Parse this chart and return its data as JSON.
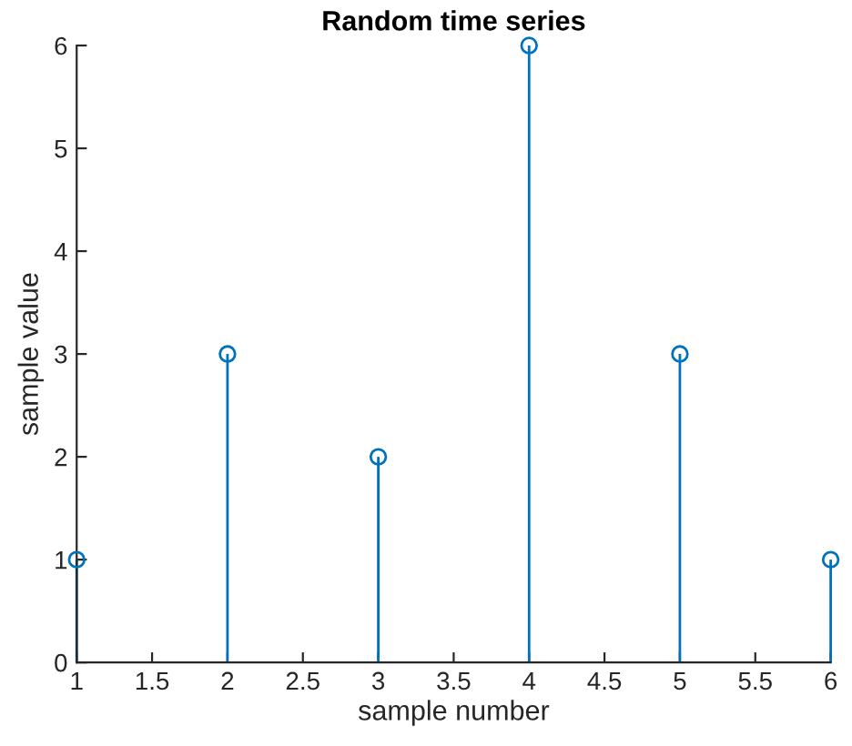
{
  "chart_data": {
    "type": "lollipop",
    "title": "Random time series",
    "xlabel": "sample number",
    "ylabel": "sample value",
    "x": [
      1,
      2,
      3,
      4,
      5,
      6
    ],
    "series": [
      {
        "color": "#0072bd",
        "values": [
          1,
          3,
          2,
          6,
          3,
          1
        ]
      }
    ],
    "xlim": [
      1,
      6
    ],
    "xticks": [
      1,
      1.5,
      2,
      2.5,
      3,
      3.5,
      4,
      4.5,
      5,
      5.5,
      6
    ],
    "ylim": [
      0,
      6
    ],
    "yticks": [
      0,
      1,
      2,
      3,
      4,
      5,
      6
    ],
    "marker": "circle",
    "grid": false
  }
}
